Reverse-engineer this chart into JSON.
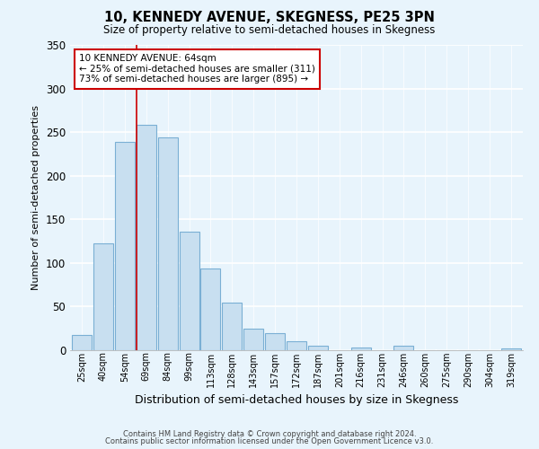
{
  "title": "10, KENNEDY AVENUE, SKEGNESS, PE25 3PN",
  "subtitle": "Size of property relative to semi-detached houses in Skegness",
  "xlabel": "Distribution of semi-detached houses by size in Skegness",
  "ylabel": "Number of semi-detached properties",
  "bar_color": "#c8dff0",
  "bar_edge_color": "#7aafd4",
  "categories": [
    "25sqm",
    "40sqm",
    "54sqm",
    "69sqm",
    "84sqm",
    "99sqm",
    "113sqm",
    "128sqm",
    "143sqm",
    "157sqm",
    "172sqm",
    "187sqm",
    "201sqm",
    "216sqm",
    "231sqm",
    "246sqm",
    "260sqm",
    "275sqm",
    "290sqm",
    "304sqm",
    "319sqm"
  ],
  "values": [
    17,
    123,
    239,
    258,
    244,
    136,
    94,
    55,
    25,
    20,
    10,
    5,
    0,
    3,
    0,
    5,
    0,
    0,
    0,
    0,
    2
  ],
  "ylim": [
    0,
    350
  ],
  "yticks": [
    0,
    50,
    100,
    150,
    200,
    250,
    300,
    350
  ],
  "property_line_color": "#cc0000",
  "annotation_title": "10 KENNEDY AVENUE: 64sqm",
  "annotation_line1": "← 25% of semi-detached houses are smaller (311)",
  "annotation_line2": "73% of semi-detached houses are larger (895) →",
  "annotation_box_color": "#ffffff",
  "annotation_box_edge_color": "#cc0000",
  "footer_line1": "Contains HM Land Registry data © Crown copyright and database right 2024.",
  "footer_line2": "Contains public sector information licensed under the Open Government Licence v3.0.",
  "background_color": "#e8f4fc"
}
